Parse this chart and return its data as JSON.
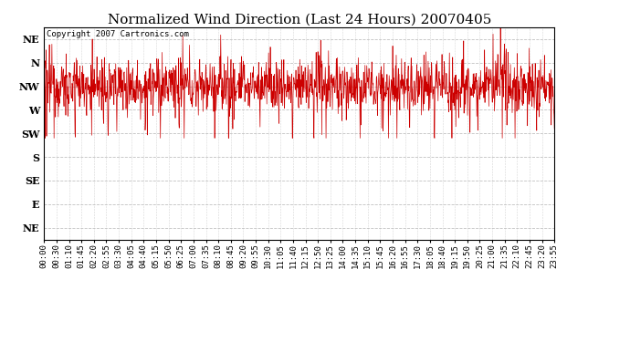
{
  "title": "Normalized Wind Direction (Last 24 Hours) 20070405",
  "copyright_text": "Copyright 2007 Cartronics.com",
  "line_color": "#cc0000",
  "background_color": "#ffffff",
  "plot_bg_color": "#ffffff",
  "ytick_labels": [
    "NE",
    "N",
    "NW",
    "W",
    "SW",
    "S",
    "SE",
    "E",
    "NE"
  ],
  "ytick_values": [
    8,
    7,
    6,
    5,
    4,
    3,
    2,
    1,
    0
  ],
  "ylim": [
    -0.5,
    8.5
  ],
  "xtick_labels": [
    "00:00",
    "00:30",
    "01:10",
    "01:45",
    "02:20",
    "02:55",
    "03:30",
    "04:05",
    "04:40",
    "05:15",
    "05:50",
    "06:25",
    "07:00",
    "07:35",
    "08:10",
    "08:45",
    "09:20",
    "09:55",
    "10:30",
    "11:05",
    "11:40",
    "12:15",
    "12:50",
    "13:25",
    "14:00",
    "14:35",
    "15:10",
    "15:45",
    "16:20",
    "16:55",
    "17:30",
    "18:05",
    "18:40",
    "19:15",
    "19:50",
    "20:25",
    "21:00",
    "21:35",
    "22:10",
    "22:45",
    "23:20",
    "23:55"
  ],
  "grid_color": "#bbbbbb",
  "title_fontsize": 11,
  "nw_value": 6.0,
  "noise_std": 0.55,
  "spike_prob": 0.12,
  "spike_down_scale": 2.2,
  "spike_up_scale": 1.5
}
